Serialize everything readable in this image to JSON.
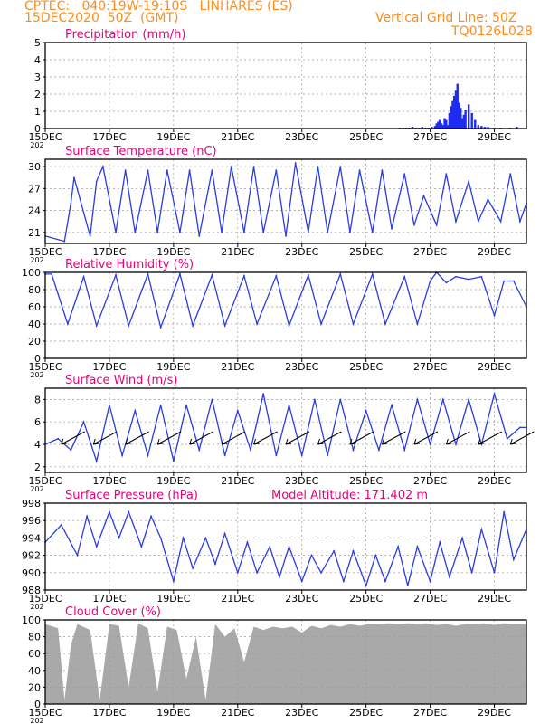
{
  "header": {
    "line1": "CPTEC:   040:19W-19:10S   LINHARES (ES)",
    "line2": "15DEC2020  50Z  (GMT)",
    "grid_note": "Vertical Grid Line: 50Z",
    "code": "TQ0126L028"
  },
  "x_axis": {
    "ticks": [
      "15DEC",
      "17DEC",
      "19DEC",
      "21DEC",
      "23DEC",
      "25DEC",
      "27DEC",
      "29DEC"
    ],
    "tick_days": [
      0,
      2,
      4,
      6,
      8,
      10,
      12,
      14
    ],
    "year_label": "202",
    "range_days": [
      0,
      15
    ]
  },
  "colors": {
    "line": "#2b3be0",
    "bar": "#1f2cf0",
    "cloud": "#a9a9a9",
    "title": "#e8007a",
    "header": "#ff8c1a"
  },
  "chart_data": [
    {
      "type": "bar",
      "title": "Precipitation (mm/h)",
      "ylim": [
        0,
        5
      ],
      "yticks": [
        0,
        1,
        2,
        3,
        4,
        5
      ],
      "x": [
        11.05,
        11.15,
        11.25,
        11.35,
        11.45,
        11.55,
        11.65,
        11.75,
        11.85,
        11.95,
        12.05,
        12.15,
        12.2,
        12.25,
        12.3,
        12.35,
        12.4,
        12.45,
        12.5,
        12.55,
        12.6,
        12.65,
        12.7,
        12.75,
        12.8,
        12.85,
        12.9,
        12.95,
        13.0,
        13.05,
        13.1,
        13.2,
        13.3,
        13.4,
        13.5,
        13.6,
        13.7,
        13.8,
        14.0,
        14.2,
        14.5,
        14.7
      ],
      "values": [
        0.05,
        0.05,
        0.05,
        0.05,
        0.1,
        0.05,
        0.05,
        0.1,
        0.05,
        0.05,
        0.1,
        0.15,
        0.3,
        0.4,
        0.5,
        0.3,
        0.2,
        0.6,
        0.5,
        0.2,
        0.9,
        1.3,
        1.6,
        1.9,
        2.2,
        2.6,
        1.5,
        1.2,
        0.6,
        0.8,
        1.1,
        1.4,
        0.9,
        0.5,
        0.2,
        0.15,
        0.1,
        0.1,
        0.05,
        0.05,
        0.05,
        0.1
      ]
    },
    {
      "type": "line",
      "title": "Surface Temperature (nC)",
      "ylim": [
        19.5,
        31
      ],
      "yticks": [
        21,
        24,
        27,
        30
      ],
      "x": [
        0,
        0.6,
        0.8,
        0.9,
        1.4,
        1.6,
        1.8,
        2.2,
        2.5,
        2.8,
        3.2,
        3.5,
        3.8,
        4.2,
        4.5,
        4.8,
        5.2,
        5.5,
        5.8,
        6.2,
        6.5,
        6.8,
        7.2,
        7.5,
        7.8,
        8.2,
        8.5,
        8.8,
        9.2,
        9.5,
        9.8,
        10.2,
        10.5,
        10.8,
        11.2,
        11.5,
        11.8,
        12.2,
        12.5,
        12.8,
        13.2,
        13.5,
        13.8,
        14.2,
        14.5,
        14.8,
        15
      ],
      "values": [
        20.5,
        19.8,
        25,
        28.5,
        20.5,
        28,
        30,
        21,
        29.5,
        21,
        29.5,
        21,
        29.5,
        21,
        29.5,
        20.5,
        29.5,
        21,
        30,
        21,
        30,
        21,
        29.5,
        20.5,
        30.5,
        21,
        30,
        21,
        30,
        21,
        29.5,
        21,
        29.5,
        21.5,
        29,
        22,
        26,
        22,
        29,
        22.5,
        28,
        22.5,
        25.5,
        22.5,
        29,
        22.5,
        25
      ]
    },
    {
      "type": "line",
      "title": "Relative Humidity (%)",
      "ylim": [
        0,
        100
      ],
      "yticks": [
        0,
        20,
        40,
        60,
        80,
        100
      ],
      "x": [
        0,
        0.2,
        0.7,
        1.2,
        1.6,
        2.2,
        2.6,
        3.2,
        3.6,
        4.2,
        4.6,
        5.2,
        5.6,
        6.2,
        6.6,
        7.2,
        7.6,
        8.2,
        8.6,
        9.2,
        9.6,
        10.2,
        10.6,
        11.2,
        11.6,
        12.0,
        12.2,
        12.5,
        12.8,
        13.2,
        13.6,
        14.0,
        14.3,
        14.6,
        15
      ],
      "values": [
        98,
        98,
        40,
        95,
        38,
        97,
        38,
        98,
        36,
        98,
        38,
        97,
        38,
        96,
        40,
        96,
        38,
        97,
        40,
        98,
        40,
        98,
        40,
        95,
        40,
        90,
        100,
        88,
        95,
        92,
        95,
        50,
        90,
        90,
        60
      ]
    },
    {
      "type": "line",
      "title": "Surface Wind (m/s)",
      "ylim": [
        1.5,
        9
      ],
      "yticks": [
        2,
        4,
        6,
        8
      ],
      "x": [
        0,
        0.4,
        0.8,
        1.2,
        1.6,
        2.0,
        2.4,
        2.8,
        3.2,
        3.6,
        4.0,
        4.4,
        4.8,
        5.2,
        5.6,
        6.0,
        6.4,
        6.8,
        7.2,
        7.6,
        8.0,
        8.4,
        8.8,
        9.2,
        9.6,
        10.0,
        10.4,
        10.8,
        11.2,
        11.6,
        12.0,
        12.4,
        12.8,
        13.2,
        13.6,
        14.0,
        14.4,
        14.8,
        15
      ],
      "values": [
        4,
        4.5,
        3.5,
        6,
        2.5,
        7.5,
        3,
        7,
        3,
        7.5,
        2.5,
        7.5,
        3.5,
        8,
        3,
        7,
        3.5,
        8.5,
        3,
        7.5,
        3,
        8,
        3,
        8,
        3.5,
        7,
        3.5,
        7.5,
        3.5,
        8,
        4,
        8,
        4,
        8,
        4,
        8.5,
        4.5,
        5.5,
        5.5
      ],
      "barb_x": [
        0.5,
        1.5,
        2.5,
        3.5,
        4.5,
        5.5,
        6.5,
        7.5,
        8.5,
        9.5,
        10.5,
        11.5,
        12.5,
        13.5,
        14.5
      ],
      "barb_y": [
        4,
        4,
        4,
        4,
        4,
        4,
        4,
        4,
        4,
        4,
        4,
        4,
        4,
        4,
        4
      ]
    },
    {
      "type": "line",
      "title": "Surface Pressure (hPa)",
      "ylim": [
        988,
        998
      ],
      "yticks": [
        988,
        990,
        992,
        994,
        996,
        998
      ],
      "x": [
        0,
        0.5,
        1.0,
        1.3,
        1.6,
        2.0,
        2.3,
        2.6,
        3.0,
        3.3,
        3.6,
        4.0,
        4.3,
        4.6,
        5.0,
        5.3,
        5.6,
        6.0,
        6.3,
        6.6,
        7.0,
        7.3,
        7.6,
        8.0,
        8.3,
        8.6,
        9.0,
        9.3,
        9.6,
        10.0,
        10.3,
        10.6,
        11.0,
        11.3,
        11.6,
        12.0,
        12.3,
        12.6,
        13.0,
        13.3,
        13.6,
        14.0,
        14.3,
        14.6,
        15
      ],
      "values": [
        993.5,
        995.5,
        992,
        996.5,
        993,
        997,
        994,
        997,
        993,
        996.5,
        994,
        989,
        994,
        990.5,
        994,
        991,
        994.5,
        990,
        993.5,
        990,
        993,
        989.5,
        993,
        989,
        992,
        990,
        992.5,
        989,
        992.5,
        988.5,
        992,
        989,
        993,
        988.5,
        993,
        989,
        993.5,
        989.5,
        994,
        990,
        995,
        990,
        997,
        991.5,
        995
      ]
    },
    {
      "type": "area",
      "title": "Cloud Cover (%)",
      "ylim": [
        0,
        100
      ],
      "yticks": [
        0,
        20,
        40,
        60,
        80,
        100
      ],
      "x": [
        0,
        0.4,
        0.6,
        0.8,
        1.0,
        1.4,
        1.7,
        2.0,
        2.3,
        2.6,
        2.9,
        3.2,
        3.5,
        3.8,
        4.1,
        4.4,
        4.7,
        5.0,
        5.3,
        5.6,
        5.9,
        6.2,
        6.5,
        6.8,
        7.1,
        7.4,
        7.7,
        8.0,
        8.3,
        8.6,
        8.9,
        9.2,
        9.5,
        9.8,
        10.1,
        10.4,
        10.7,
        11.0,
        11.3,
        11.6,
        11.9,
        12.2,
        12.5,
        12.8,
        13.1,
        13.4,
        13.7,
        14.0,
        14.3,
        14.6,
        15
      ],
      "values": [
        95,
        90,
        5,
        70,
        95,
        88,
        5,
        95,
        93,
        20,
        96,
        90,
        15,
        92,
        88,
        30,
        80,
        5,
        95,
        80,
        90,
        50,
        92,
        88,
        92,
        90,
        92,
        85,
        93,
        90,
        94,
        92,
        95,
        93,
        95,
        95,
        96,
        95,
        96,
        95,
        96,
        94,
        95,
        93,
        95,
        95,
        96,
        94,
        96,
        95,
        95
      ]
    }
  ],
  "extra": {
    "model_altitude": "Model Altitude: 171.402 m"
  }
}
